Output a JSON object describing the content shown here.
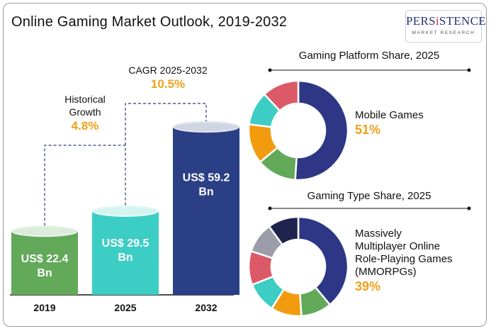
{
  "title": "Online Gaming Market Outlook, 2019-2032",
  "logo": {
    "name_start": "PERS",
    "name_accent": "i",
    "name_end": "STENCE",
    "tagline": "MARKET RESEARCH"
  },
  "colors": {
    "bar_2019": "#62a95a",
    "bar_2025": "#3ccdc5",
    "bar_2032": "#2a3f85",
    "accent": "#f2a01a",
    "dashed": "#2b3a7a"
  },
  "annotations": {
    "historical": {
      "label_line1": "Historical",
      "label_line2": "Growth",
      "value": "4.8%"
    },
    "cagr": {
      "label": "CAGR 2025-2032",
      "value": "10.5%"
    }
  },
  "chart_data": [
    {
      "type": "bar",
      "title": "Online Gaming Market Outlook, 2019-2032",
      "categories": [
        "2019",
        "2025",
        "2032"
      ],
      "values": [
        22.4,
        29.5,
        59.2
      ],
      "value_labels": [
        [
          "US$ 22.4",
          "Bn"
        ],
        [
          "US$ 29.5",
          "Bn"
        ],
        [
          "US$ 59.2",
          "Bn"
        ]
      ],
      "xlabel": "",
      "ylabel": ""
    },
    {
      "type": "pie",
      "title": "Gaming Platform Share, 2025",
      "highlight": {
        "name": "Mobile Games",
        "pct_label": "51%"
      },
      "slices": [
        {
          "value": 51,
          "color": "#2d3785"
        },
        {
          "value": 13,
          "color": "#62a95a"
        },
        {
          "value": 13,
          "color": "#f29b0f"
        },
        {
          "value": 11,
          "color": "#3ccdc5"
        },
        {
          "value": 12,
          "color": "#dc5a67"
        }
      ]
    },
    {
      "type": "pie",
      "title": "Gaming Type Share, 2025",
      "highlight": {
        "name_lines": [
          "Massively",
          "Multiplayer Online",
          "Role-Playing Games",
          "(MMORPGs)"
        ],
        "pct_label": "39%"
      },
      "slices": [
        {
          "value": 39,
          "color": "#2d3785"
        },
        {
          "value": 10,
          "color": "#62a95a"
        },
        {
          "value": 10,
          "color": "#f29b0f"
        },
        {
          "value": 10,
          "color": "#3ccdc5"
        },
        {
          "value": 11,
          "color": "#dc5a67"
        },
        {
          "value": 10,
          "color": "#9d9daa"
        },
        {
          "value": 10,
          "color": "#1f244f"
        }
      ]
    }
  ]
}
